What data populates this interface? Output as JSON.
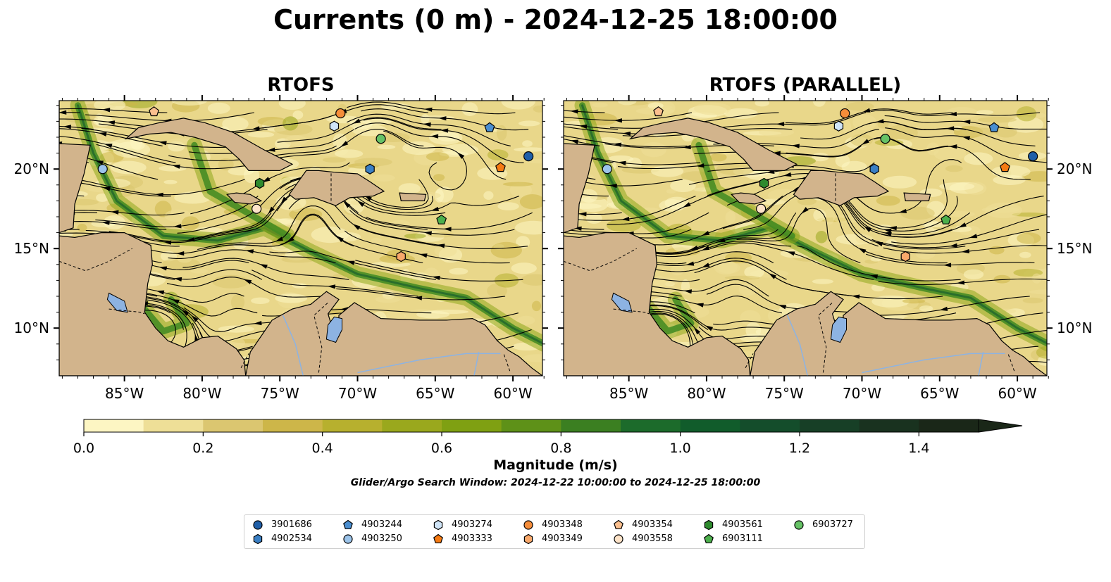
{
  "title": "Currents (0 m) - 2024-12-25 18:00:00",
  "panels": [
    {
      "title": "RTOFS"
    },
    {
      "title": "RTOFS (PARALLEL)"
    }
  ],
  "map": {
    "lon_range": [
      -89.2,
      -58.1
    ],
    "lat_range": [
      7.0,
      24.3
    ],
    "lon_ticks": [
      "85°W",
      "80°W",
      "75°W",
      "70°W",
      "65°W",
      "60°W"
    ],
    "lon_tick_values": [
      -85,
      -80,
      -75,
      -70,
      -65,
      -60
    ],
    "lat_ticks": [
      "20°N",
      "15°N",
      "10°N"
    ],
    "lat_tick_values": [
      20,
      15,
      10
    ],
    "land_color": "#d2b48c",
    "water_inland_color": "#8db3e2"
  },
  "colorbar": {
    "label": "Magnitude (m/s)",
    "ticks": [
      "0.0",
      "0.2",
      "0.4",
      "0.6",
      "0.8",
      "1.0",
      "1.2",
      "1.4"
    ],
    "tick_values": [
      0.0,
      0.2,
      0.4,
      0.6,
      0.8,
      1.0,
      1.2,
      1.4
    ],
    "range": [
      0.0,
      1.5
    ],
    "extend": "max",
    "colors": [
      "#fdf6c3",
      "#eedf97",
      "#dbc670",
      "#cdb649",
      "#b7b02e",
      "#9aa81d",
      "#7fa012",
      "#5e9118",
      "#3b7f21",
      "#1c6b2b",
      "#115c2b",
      "#144d2b",
      "#173f26",
      "#19321f",
      "#1a2718"
    ]
  },
  "window_text": "Glider/Argo Search Window: 2024-12-22 10:00:00 to 2024-12-25 18:00:00",
  "floats": [
    {
      "id": "3901686",
      "shape": "circle",
      "color": "#1f5fa8",
      "lon": -59.0,
      "lat": 20.8
    },
    {
      "id": "4902534",
      "shape": "hexagon",
      "color": "#3a7fc4",
      "lon": -69.2,
      "lat": 20.0
    },
    {
      "id": "4903244",
      "shape": "pentagon",
      "color": "#4a8ed0",
      "lon": -61.5,
      "lat": 22.6
    },
    {
      "id": "4903250",
      "shape": "circle",
      "color": "#9cc4ea",
      "lon": -86.4,
      "lat": 20.0
    },
    {
      "id": "4903274",
      "shape": "hexagon",
      "color": "#cfe4f7",
      "lon": -71.5,
      "lat": 22.7
    },
    {
      "id": "4903333",
      "shape": "pentagon",
      "color": "#f57a13",
      "lon": -60.8,
      "lat": 20.1
    },
    {
      "id": "4903348",
      "shape": "circle",
      "color": "#f58d3a",
      "lon": -71.1,
      "lat": 23.5
    },
    {
      "id": "4903349",
      "shape": "hexagon",
      "color": "#f9a86b",
      "lon": -67.2,
      "lat": 14.5
    },
    {
      "id": "4903354",
      "shape": "pentagon",
      "color": "#fbbf8e",
      "lon": -83.1,
      "lat": 23.6
    },
    {
      "id": "4903558",
      "shape": "circle",
      "color": "#fde3c8",
      "lon": -76.5,
      "lat": 17.5
    },
    {
      "id": "4903561",
      "shape": "hexagon",
      "color": "#2e8a2e",
      "lon": -76.3,
      "lat": 19.1
    },
    {
      "id": "6903111",
      "shape": "pentagon",
      "color": "#4caf4c",
      "lon": -64.6,
      "lat": 16.8
    },
    {
      "id": "6903727",
      "shape": "circle",
      "color": "#66c266",
      "lon": -68.5,
      "lat": 21.9
    }
  ]
}
